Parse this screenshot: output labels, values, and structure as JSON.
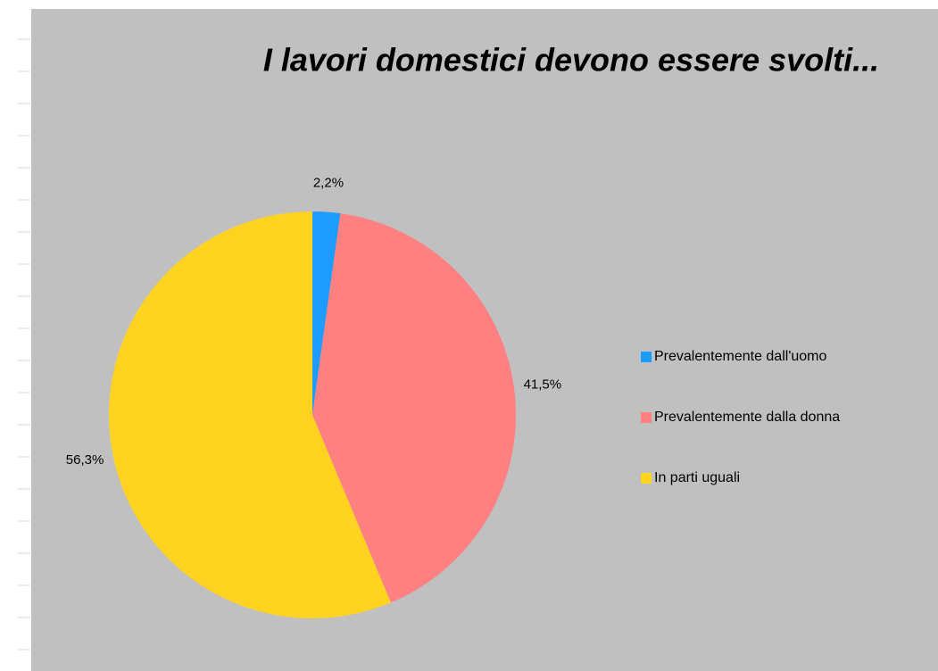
{
  "chart_data": {
    "type": "pie",
    "title": "I lavori domestici devono essere svolti...",
    "categories": [
      "Prevalentemente dall'uomo",
      "Prevalentemente dalla donna",
      "In parti uguali"
    ],
    "values": [
      2.2,
      41.5,
      56.3
    ],
    "value_labels": [
      "2,2%",
      "41,5%",
      "56,3%"
    ],
    "colors": [
      "#1e9bff",
      "#ff8080",
      "#ffd320"
    ],
    "legend": "right"
  }
}
